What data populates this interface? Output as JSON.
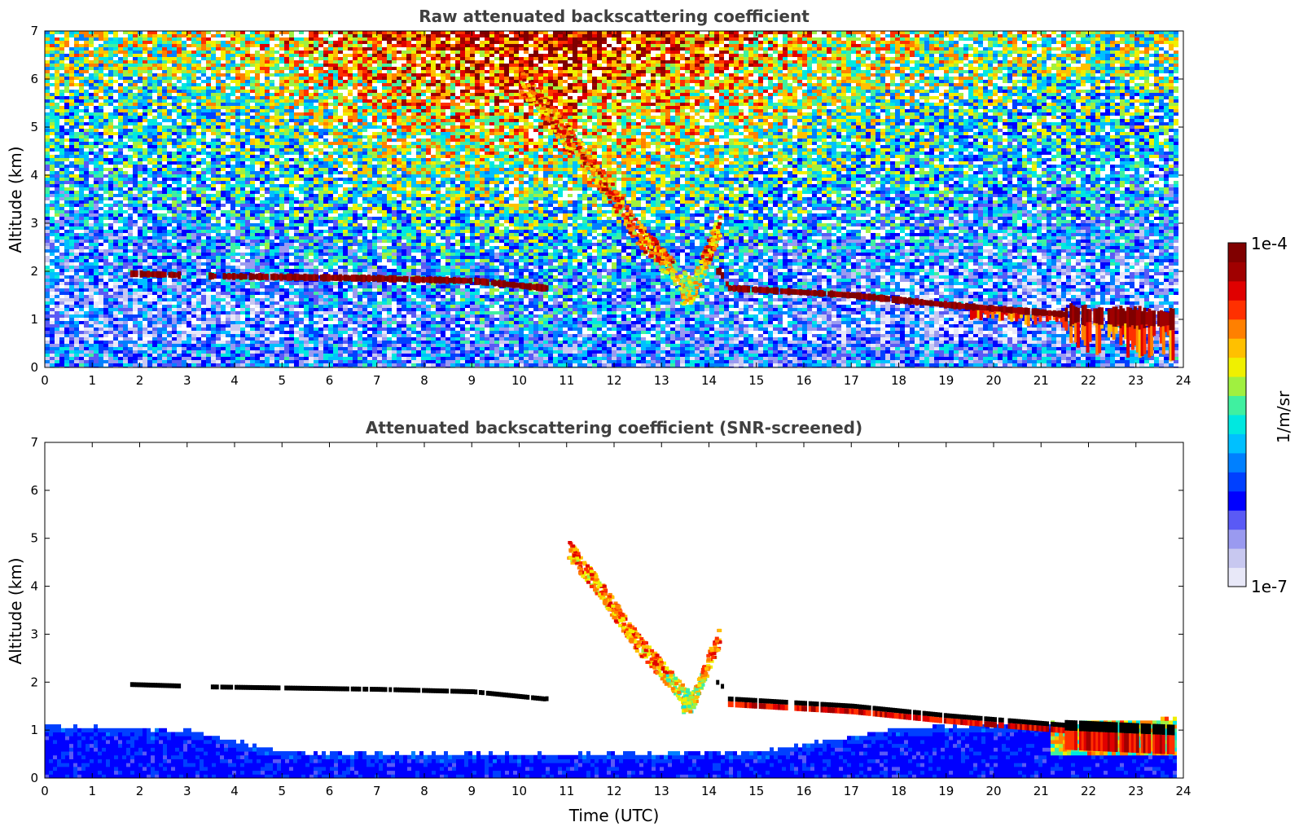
{
  "chart_data": [
    {
      "type": "heatmap",
      "title": "Raw attenuated backscattering coefficient",
      "xlabel": "",
      "ylabel": "Altitude (km)",
      "xlim": [
        0,
        24
      ],
      "ylim": [
        0,
        7
      ],
      "xticks": [
        "0",
        "1",
        "2",
        "3",
        "4",
        "5",
        "6",
        "7",
        "8",
        "9",
        "10",
        "11",
        "12",
        "13",
        "14",
        "15",
        "16",
        "17",
        "18",
        "19",
        "20",
        "21",
        "22",
        "23",
        "24"
      ],
      "yticks": [
        "0",
        "1",
        "2",
        "3",
        "4",
        "5",
        "6",
        "7"
      ],
      "data_extent_x": [
        0,
        23.8
      ],
      "cloud_layer_base_km": [
        {
          "time": 1.8,
          "alt": 1.95
        },
        {
          "time": 3.5,
          "alt": 1.9
        },
        {
          "time": 7.0,
          "alt": 1.85
        },
        {
          "time": 9.0,
          "alt": 1.8
        },
        {
          "time": 10.5,
          "alt": 1.65
        },
        {
          "time": 14.2,
          "alt": 2.0
        },
        {
          "time": 14.4,
          "alt": 1.65
        },
        {
          "time": 17.0,
          "alt": 1.5
        },
        {
          "time": 19.0,
          "alt": 1.3
        },
        {
          "time": 21.5,
          "alt": 1.1
        },
        {
          "time": 23.8,
          "alt": 1.0
        }
      ],
      "fall_streak_km": [
        {
          "time": 10.0,
          "alt": 6.0
        },
        {
          "time": 11.5,
          "alt": 4.2
        },
        {
          "time": 12.5,
          "alt": 2.8
        },
        {
          "time": 13.6,
          "alt": 1.6
        },
        {
          "time": 14.2,
          "alt": 3.0
        }
      ]
    },
    {
      "type": "heatmap",
      "title": "Attenuated backscattering coefficient (SNR-screened)",
      "xlabel": "Time (UTC)",
      "ylabel": "Altitude (km)",
      "xlim": [
        0,
        24
      ],
      "ylim": [
        0,
        7
      ],
      "xticks": [
        "0",
        "1",
        "2",
        "3",
        "4",
        "5",
        "6",
        "7",
        "8",
        "9",
        "10",
        "11",
        "12",
        "13",
        "14",
        "15",
        "16",
        "17",
        "18",
        "19",
        "20",
        "21",
        "22",
        "23",
        "24"
      ],
      "yticks": [
        "0",
        "1",
        "2",
        "3",
        "4",
        "5",
        "6",
        "7"
      ],
      "data_extent_x": [
        0,
        23.8
      ],
      "boundary_layer_top_km": [
        {
          "time": 0,
          "alt": 1.05
        },
        {
          "time": 3,
          "alt": 0.95
        },
        {
          "time": 5,
          "alt": 0.5
        },
        {
          "time": 10,
          "alt": 0.45
        },
        {
          "time": 15,
          "alt": 0.5
        },
        {
          "time": 18,
          "alt": 1.0
        },
        {
          "time": 21,
          "alt": 1.1
        },
        {
          "time": 23.8,
          "alt": 1.2
        }
      ]
    }
  ],
  "colorbar": {
    "max_label": "1e-4",
    "min_label": "1e-7",
    "unit_label": "1/m/sr",
    "scale": "log",
    "colors": [
      "#e8e8f8",
      "#c8c8f0",
      "#9a9af0",
      "#5a5af5",
      "#0000ff",
      "#0040ff",
      "#0080ff",
      "#00c0ff",
      "#00e8e0",
      "#40f0a0",
      "#a0f040",
      "#f0f000",
      "#ffc000",
      "#ff8000",
      "#ff3000",
      "#e00000",
      "#a00000",
      "#800000"
    ]
  }
}
